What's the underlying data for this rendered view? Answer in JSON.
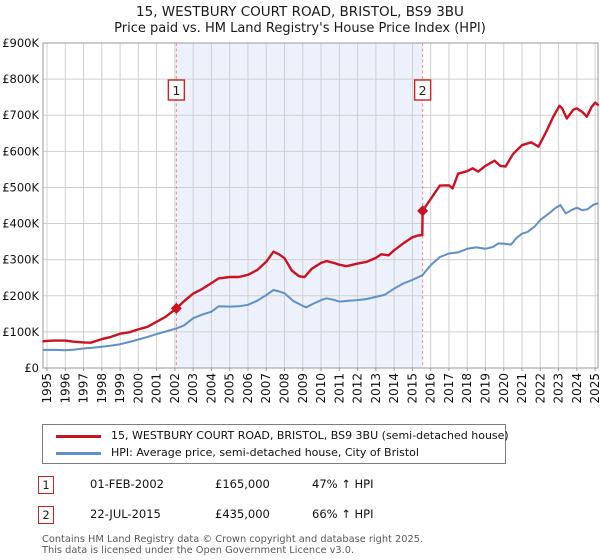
{
  "title": {
    "line1": "15, WESTBURY COURT ROAD, BRISTOL, BS9 3BU",
    "line2": "Price paid vs. HM Land Registry's House Price Index (HPI)"
  },
  "legend": {
    "items": [
      {
        "label": "15, WESTBURY COURT ROAD, BRISTOL, BS9 3BU (semi-detached house)",
        "color": "#cc1122"
      },
      {
        "label": "HPI: Average price, semi-detached house, City of Bristol",
        "color": "#6090c6"
      }
    ]
  },
  "sales": [
    {
      "num": "1",
      "date": "01-FEB-2002",
      "price": "£165,000",
      "hpi": "47% ↑ HPI"
    },
    {
      "num": "2",
      "date": "22-JUL-2015",
      "price": "£435,000",
      "hpi": "66% ↑ HPI"
    }
  ],
  "footer": {
    "line1": "Contains HM Land Registry data © Crown copyright and database right 2025.",
    "line2": "This data is licensed under the Open Government Licence v3.0."
  },
  "colors": {
    "price_line": "#cc1122",
    "hpi_line": "#6090c6",
    "shade": "#edf1fb",
    "grid": "#d0d0d0",
    "border": "#9a9a9a",
    "dashed": "#ee8888",
    "marker_box_border": "#cc2222",
    "axis_text": "#111111"
  },
  "chart_data": {
    "type": "line",
    "title": "15, WESTBURY COURT ROAD, BRISTOL, BS9 3BU",
    "subtitle": "Price paid vs. HM Land Registry's House Price Index (HPI)",
    "grid": true,
    "x_axis": {
      "min": 1994.78,
      "max": 2025.16,
      "ticks": [
        1995,
        1996,
        1997,
        1998,
        1999,
        2000,
        2001,
        2002,
        2003,
        2004,
        2005,
        2006,
        2007,
        2008,
        2009,
        2010,
        2011,
        2012,
        2013,
        2014,
        2015,
        2016,
        2017,
        2018,
        2019,
        2020,
        2021,
        2022,
        2023,
        2024,
        2025
      ]
    },
    "y_axis": {
      "min": 0,
      "max": 900000,
      "ticks": [
        {
          "v": 0,
          "label": "£0"
        },
        {
          "v": 100000,
          "label": "£100K"
        },
        {
          "v": 200000,
          "label": "£200K"
        },
        {
          "v": 300000,
          "label": "£300K"
        },
        {
          "v": 400000,
          "label": "£400K"
        },
        {
          "v": 500000,
          "label": "£500K"
        },
        {
          "v": 600000,
          "label": "£600K"
        },
        {
          "v": 700000,
          "label": "£700K"
        },
        {
          "v": 800000,
          "label": "£800K"
        },
        {
          "v": 900000,
          "label": "£900K"
        }
      ]
    },
    "shaded_region": {
      "from": 2002.08,
      "to": 2015.56
    },
    "markers": [
      {
        "label": "1",
        "year": 2002.08,
        "value": 165000
      },
      {
        "label": "2",
        "year": 2015.56,
        "value": 435000
      }
    ],
    "series": [
      {
        "name": "HPI: Average price, semi-detached house, City of Bristol",
        "color": "#6090c6",
        "width": 2,
        "values": [
          [
            1994.8,
            50000
          ],
          [
            1995.5,
            50000
          ],
          [
            1996.0,
            49000
          ],
          [
            1996.5,
            51000
          ],
          [
            1997.0,
            54000
          ],
          [
            1997.5,
            56000
          ],
          [
            1998.0,
            59000
          ],
          [
            1998.5,
            62000
          ],
          [
            1999.0,
            66000
          ],
          [
            1999.5,
            72000
          ],
          [
            2000.0,
            79000
          ],
          [
            2000.5,
            86000
          ],
          [
            2001.0,
            94000
          ],
          [
            2001.5,
            101000
          ],
          [
            2002.1,
            110000
          ],
          [
            2002.5,
            118000
          ],
          [
            2003.0,
            138000
          ],
          [
            2003.5,
            148000
          ],
          [
            2004.0,
            156000
          ],
          [
            2004.4,
            171000
          ],
          [
            2005.0,
            170000
          ],
          [
            2005.5,
            171000
          ],
          [
            2006.0,
            175000
          ],
          [
            2006.5,
            186000
          ],
          [
            2007.0,
            202000
          ],
          [
            2007.4,
            216000
          ],
          [
            2007.7,
            212000
          ],
          [
            2008.0,
            207000
          ],
          [
            2008.5,
            185000
          ],
          [
            2009.0,
            172000
          ],
          [
            2009.2,
            168000
          ],
          [
            2009.5,
            176000
          ],
          [
            2010.0,
            188000
          ],
          [
            2010.3,
            193000
          ],
          [
            2010.7,
            189000
          ],
          [
            2011.0,
            184000
          ],
          [
            2011.5,
            186000
          ],
          [
            2012.0,
            188000
          ],
          [
            2012.5,
            191000
          ],
          [
            2013.0,
            197000
          ],
          [
            2013.5,
            203000
          ],
          [
            2014.0,
            220000
          ],
          [
            2014.5,
            234000
          ],
          [
            2015.0,
            244000
          ],
          [
            2015.55,
            257000
          ],
          [
            2016.0,
            285000
          ],
          [
            2016.5,
            307000
          ],
          [
            2017.0,
            317000
          ],
          [
            2017.5,
            320000
          ],
          [
            2018.0,
            330000
          ],
          [
            2018.5,
            334000
          ],
          [
            2019.0,
            330000
          ],
          [
            2019.4,
            335000
          ],
          [
            2019.7,
            345000
          ],
          [
            2020.0,
            344000
          ],
          [
            2020.4,
            342000
          ],
          [
            2020.7,
            360000
          ],
          [
            2021.0,
            372000
          ],
          [
            2021.3,
            377000
          ],
          [
            2021.7,
            392000
          ],
          [
            2022.0,
            410000
          ],
          [
            2022.5,
            429000
          ],
          [
            2022.8,
            442000
          ],
          [
            2023.1,
            451000
          ],
          [
            2023.4,
            428000
          ],
          [
            2023.7,
            437000
          ],
          [
            2024.0,
            444000
          ],
          [
            2024.3,
            437000
          ],
          [
            2024.6,
            440000
          ],
          [
            2024.9,
            452000
          ],
          [
            2025.15,
            456000
          ]
        ]
      },
      {
        "name": "15, WESTBURY COURT ROAD, BRISTOL, BS9 3BU (semi-detached house)",
        "color": "#cc1122",
        "width": 2.4,
        "values": [
          [
            1994.8,
            74000
          ],
          [
            1995.0,
            75000
          ],
          [
            1995.4,
            76000
          ],
          [
            1996.0,
            76000
          ],
          [
            1996.4,
            73000
          ],
          [
            1997.0,
            71000
          ],
          [
            1997.4,
            70000
          ],
          [
            1998.0,
            80000
          ],
          [
            1998.5,
            86000
          ],
          [
            1999.0,
            95000
          ],
          [
            1999.5,
            99000
          ],
          [
            2000.0,
            107000
          ],
          [
            2000.5,
            114000
          ],
          [
            2001.0,
            128000
          ],
          [
            2001.5,
            142000
          ],
          [
            2002.08,
            165000
          ],
          [
            2002.5,
            185000
          ],
          [
            2003.0,
            206000
          ],
          [
            2003.5,
            219000
          ],
          [
            2004.0,
            235000
          ],
          [
            2004.4,
            248000
          ],
          [
            2005.0,
            252000
          ],
          [
            2005.5,
            252000
          ],
          [
            2006.0,
            258000
          ],
          [
            2006.5,
            271000
          ],
          [
            2007.0,
            294000
          ],
          [
            2007.4,
            322000
          ],
          [
            2007.7,
            315000
          ],
          [
            2008.0,
            304000
          ],
          [
            2008.4,
            270000
          ],
          [
            2008.8,
            254000
          ],
          [
            2009.1,
            252000
          ],
          [
            2009.5,
            275000
          ],
          [
            2010.0,
            291000
          ],
          [
            2010.3,
            296000
          ],
          [
            2010.7,
            291000
          ],
          [
            2011.0,
            286000
          ],
          [
            2011.4,
            282000
          ],
          [
            2012.0,
            289000
          ],
          [
            2012.5,
            294000
          ],
          [
            2013.0,
            305000
          ],
          [
            2013.3,
            315000
          ],
          [
            2013.7,
            312000
          ],
          [
            2014.0,
            326000
          ],
          [
            2014.5,
            345000
          ],
          [
            2015.0,
            362000
          ],
          [
            2015.3,
            367000
          ],
          [
            2015.54,
            368000
          ],
          [
            2015.56,
            435000
          ],
          [
            2016.0,
            468000
          ],
          [
            2016.5,
            505000
          ],
          [
            2017.0,
            506000
          ],
          [
            2017.2,
            497000
          ],
          [
            2017.5,
            538000
          ],
          [
            2018.0,
            545000
          ],
          [
            2018.3,
            553000
          ],
          [
            2018.6,
            544000
          ],
          [
            2019.0,
            560000
          ],
          [
            2019.5,
            574000
          ],
          [
            2019.8,
            560000
          ],
          [
            2020.1,
            558000
          ],
          [
            2020.5,
            592000
          ],
          [
            2021.0,
            617000
          ],
          [
            2021.5,
            625000
          ],
          [
            2021.9,
            613000
          ],
          [
            2022.3,
            652000
          ],
          [
            2022.7,
            695000
          ],
          [
            2023.05,
            726000
          ],
          [
            2023.2,
            719000
          ],
          [
            2023.45,
            691000
          ],
          [
            2023.8,
            715000
          ],
          [
            2024.0,
            719000
          ],
          [
            2024.3,
            709000
          ],
          [
            2024.55,
            696000
          ],
          [
            2024.8,
            722000
          ],
          [
            2025.0,
            735000
          ],
          [
            2025.15,
            729000
          ]
        ]
      }
    ]
  }
}
